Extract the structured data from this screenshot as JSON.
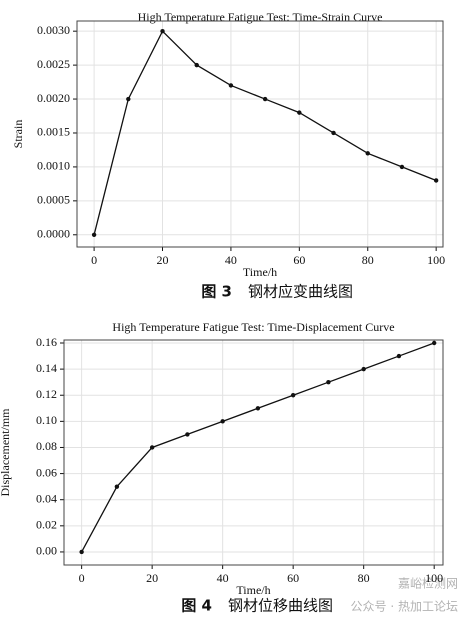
{
  "chart_data": [
    {
      "type": "line",
      "title": "High Temperature Fatigue Test: Time-Strain Curve",
      "x_label": "Time/h",
      "y_label": "Strain",
      "x": [
        0,
        10,
        20,
        30,
        40,
        50,
        60,
        70,
        80,
        90,
        100
      ],
      "values": [
        0,
        0.002,
        0.003,
        0.0025,
        0.0022,
        0.002,
        0.0018,
        0.0015,
        0.0012,
        0.001,
        0.0008
      ],
      "color": "#111111",
      "xlim": [
        -5,
        102
      ],
      "ylim": [
        -0.00018,
        0.00315
      ],
      "xticks": [
        0,
        20,
        40,
        60,
        80,
        100
      ],
      "yticks": [
        {
          "value": 0,
          "label": "0.0000"
        },
        {
          "value": 0.0005,
          "label": "0.0005"
        },
        {
          "value": 0.001,
          "label": "0.0010"
        },
        {
          "value": 0.0015,
          "label": "0.0015"
        },
        {
          "value": 0.002,
          "label": "0.0020"
        },
        {
          "value": 0.0025,
          "label": "0.0025"
        },
        {
          "value": 0.003,
          "label": "0.0030"
        }
      ],
      "grid": true
    },
    {
      "type": "line",
      "title": "High Temperature Fatigue Test: Time-Displacement Curve",
      "x_label": "Time/h",
      "y_label": "Displacement/mm",
      "x": [
        0,
        10,
        20,
        30,
        40,
        50,
        60,
        70,
        80,
        90,
        100
      ],
      "values": [
        0,
        0.05,
        0.08,
        0.09,
        0.1,
        0.11,
        0.12,
        0.13,
        0.14,
        0.15,
        0.16
      ],
      "color": "#111111",
      "xlim": [
        -5,
        102.5
      ],
      "ylim": [
        -0.01,
        0.1623
      ],
      "xticks": [
        0,
        20,
        40,
        60,
        80,
        100
      ],
      "yticks": [
        {
          "value": 0,
          "label": "0.00"
        },
        {
          "value": 0.02,
          "label": "0.02"
        },
        {
          "value": 0.04,
          "label": "0.04"
        },
        {
          "value": 0.06,
          "label": "0.06"
        },
        {
          "value": 0.08,
          "label": "0.08"
        },
        {
          "value": 0.1,
          "label": "0.10"
        },
        {
          "value": 0.12,
          "label": "0.12"
        },
        {
          "value": 0.14,
          "label": "0.14"
        },
        {
          "value": 0.16,
          "label": "0.16"
        }
      ],
      "grid": true
    }
  ],
  "captions": [
    {
      "label": "图 3",
      "text": "钢材应变曲线图"
    },
    {
      "label": "图 4",
      "text": "钢材位移曲线图"
    }
  ],
  "watermark": [
    "嘉峪检测网",
    "公众号 · 热加工论坛"
  ]
}
